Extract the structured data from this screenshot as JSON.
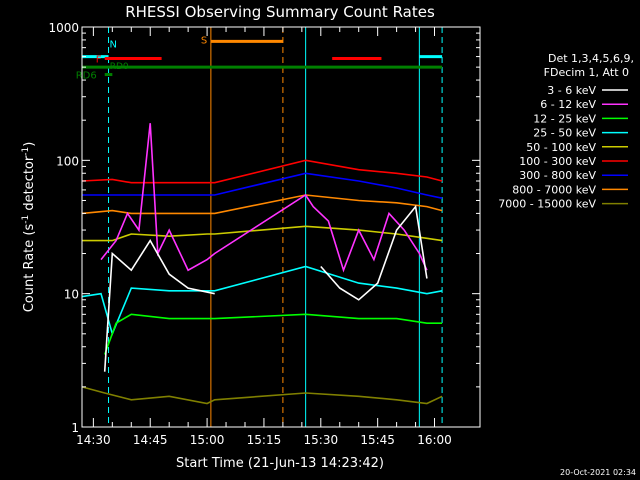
{
  "chart_data": {
    "type": "line",
    "title": "RHESSI Observing Summary Count Rates",
    "xlabel": "Start Time (21-Jun-13 14:23:42)",
    "ylabel_main": "Count Rate (s",
    "ylabel_sup1": "-1",
    "ylabel_mid": " detector",
    "ylabel_sup2": "-1",
    "ylabel_end": ")",
    "y_scale": "log",
    "ylim": [
      1,
      1000
    ],
    "xlim_minutes": [
      -3,
      102
    ],
    "y_ticks": [
      {
        "value": 1,
        "label": "1"
      },
      {
        "value": 10,
        "label": "10"
      },
      {
        "value": 100,
        "label": "100"
      },
      {
        "value": 1000,
        "label": "1000"
      }
    ],
    "x_ticks": [
      {
        "minute": 0,
        "label": "14:30"
      },
      {
        "minute": 15,
        "label": "14:45"
      },
      {
        "minute": 30,
        "label": "15:00"
      },
      {
        "minute": 45,
        "label": "15:15"
      },
      {
        "minute": 60,
        "label": "15:30"
      },
      {
        "minute": 75,
        "label": "15:45"
      },
      {
        "minute": 90,
        "label": "16:00"
      }
    ],
    "legend_header": [
      "Det 1,3,4,5,6,9,",
      "FDecim 1, Att 0"
    ],
    "series": [
      {
        "name": "3 - 6 keV",
        "color": "#ffffff",
        "x": [
          -3,
          3,
          5,
          10,
          15,
          20,
          25,
          32,
          56,
          60,
          65,
          70,
          75,
          80,
          85,
          88
        ],
        "y": [
          null,
          2.6,
          20,
          15,
          25,
          14,
          11,
          10,
          null,
          16,
          11,
          9,
          12,
          30,
          45,
          13
        ]
      },
      {
        "name": "6 - 12 keV",
        "color": "#ff33ff",
        "x": [
          2,
          6,
          9,
          12,
          15,
          17,
          20,
          25,
          30,
          32,
          56,
          58,
          62,
          66,
          70,
          74,
          78,
          82,
          86,
          88
        ],
        "y": [
          18,
          25,
          40,
          30,
          190,
          20,
          30,
          15,
          18,
          20,
          55,
          45,
          35,
          15,
          30,
          18,
          40,
          30,
          20,
          15
        ]
      },
      {
        "name": "12 - 25 keV",
        "color": "#00ff00",
        "x": [
          -3,
          3,
          6,
          10,
          20,
          30,
          32,
          56,
          70,
          80,
          88,
          92
        ],
        "y": [
          null,
          3.5,
          6,
          7,
          6.5,
          6.5,
          6.5,
          7,
          6.5,
          6.5,
          6,
          6
        ]
      },
      {
        "name": "25 - 50 keV",
        "color": "#00ffff",
        "x": [
          -3,
          2,
          5,
          10,
          20,
          30,
          32,
          56,
          70,
          80,
          88,
          92
        ],
        "y": [
          9.5,
          10,
          5,
          11,
          10.5,
          10.5,
          10.5,
          16,
          12,
          11,
          10,
          10.5
        ]
      },
      {
        "name": "50 - 100 keV",
        "color": "#cccc00",
        "x": [
          -3,
          5,
          10,
          20,
          30,
          32,
          56,
          70,
          80,
          88,
          92
        ],
        "y": [
          25,
          25,
          28,
          27,
          28,
          28,
          32,
          30,
          28,
          26,
          25
        ]
      },
      {
        "name": "100 - 300 keV",
        "color": "#ff0000",
        "x": [
          -3,
          5,
          10,
          20,
          30,
          32,
          56,
          70,
          80,
          88,
          92
        ],
        "y": [
          70,
          72,
          68,
          68,
          68,
          68,
          100,
          85,
          80,
          75,
          70
        ]
      },
      {
        "name": "300 - 800 keV",
        "color": "#0000ff",
        "x": [
          -3,
          5,
          10,
          20,
          30,
          32,
          56,
          70,
          80,
          88,
          92
        ],
        "y": [
          55,
          55,
          55,
          55,
          55,
          55,
          80,
          70,
          62,
          55,
          52
        ]
      },
      {
        "name": "800 - 7000 keV",
        "color": "#ff8800",
        "x": [
          -3,
          5,
          10,
          20,
          30,
          32,
          56,
          70,
          80,
          88,
          92
        ],
        "y": [
          40,
          42,
          40,
          40,
          40,
          40,
          55,
          50,
          48,
          45,
          42
        ]
      },
      {
        "name": "7000 - 15000 keV",
        "color": "#808000",
        "x": [
          -3,
          3,
          10,
          20,
          30,
          32,
          56,
          70,
          80,
          88,
          92
        ],
        "y": [
          2,
          1.8,
          1.6,
          1.7,
          1.5,
          1.6,
          1.8,
          1.7,
          1.6,
          1.5,
          1.7
        ]
      }
    ],
    "annotations": {
      "eclipse_bars": {
        "color": "#00ffff",
        "y": 600,
        "intervals": [
          [
            -3,
            4
          ],
          [
            86,
            92
          ]
        ]
      },
      "eclipse_vlines": {
        "color": "#00ffff",
        "solid": [
          -3,
          56,
          86
        ],
        "dashed": [
          4,
          92
        ]
      },
      "saa_bar": {
        "label": "S",
        "color": "#ff8800",
        "y": 780,
        "interval": [
          31,
          50
        ]
      },
      "saa_vlines": {
        "color": "#ff8800",
        "solid": [
          31
        ],
        "dashed": [
          50
        ]
      },
      "flare_bars": {
        "label": "F",
        "color": "#ff0000",
        "y": 580,
        "intervals": [
          [
            3,
            18
          ],
          [
            63,
            76
          ]
        ]
      },
      "night_label": {
        "label": "N",
        "color": "#00ffff",
        "minute": 4,
        "y": 750
      },
      "rd0_bar": {
        "label": "RD0",
        "color": "#008000",
        "y": 500,
        "interval": [
          -3,
          92
        ]
      },
      "rd6_bar": {
        "label": "RD6",
        "color": "#008000",
        "y": 440,
        "interval": [
          3,
          5
        ]
      }
    },
    "grid": false,
    "legend": "right"
  },
  "footer": {
    "timestamp": "20-Oct-2021 02:34"
  }
}
